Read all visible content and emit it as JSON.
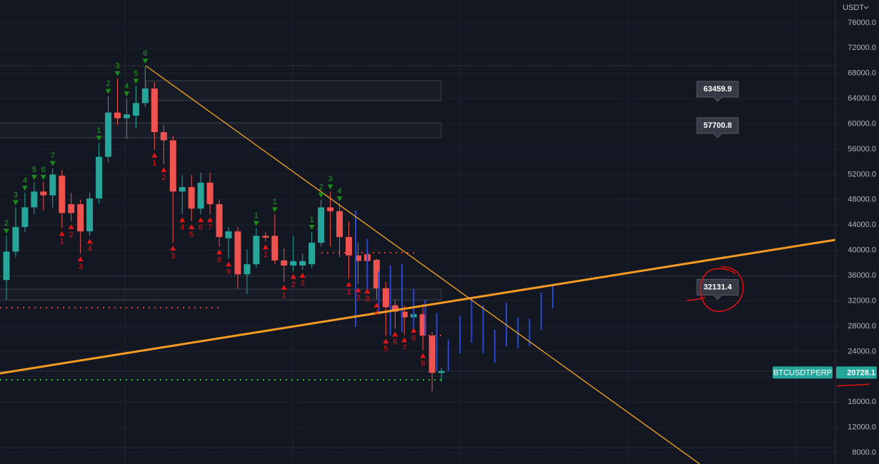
{
  "header": {
    "currency": "USDT"
  },
  "chart_data": {
    "type": "candlestick",
    "ylim": [
      6200,
      79600
    ],
    "yticks": [
      {
        "value": 8000,
        "label": "8000.0"
      },
      {
        "value": 12000,
        "label": "12000.0"
      },
      {
        "value": 16000,
        "label": "16000.0"
      },
      {
        "value": 20000,
        "label": "20000.0"
      },
      {
        "value": 24000,
        "label": "24000.0"
      },
      {
        "value": 28000,
        "label": "28000.0"
      },
      {
        "value": 32000,
        "label": "32000.0"
      },
      {
        "value": 36000,
        "label": "36000.0"
      },
      {
        "value": 40000,
        "label": "40000.0"
      },
      {
        "value": 44000,
        "label": "44000.0"
      },
      {
        "value": 48000,
        "label": "48000.0"
      },
      {
        "value": 52000,
        "label": "52000.0"
      },
      {
        "value": 56000,
        "label": "56000.0"
      },
      {
        "value": 60000,
        "label": "60000.0"
      },
      {
        "value": 64000,
        "label": "64000.0"
      },
      {
        "value": 68000,
        "label": "68000.0"
      },
      {
        "value": 72000,
        "label": "72000.0"
      },
      {
        "value": 76000,
        "label": "76000.0"
      }
    ],
    "grid": true,
    "up_color": "#26a69a",
    "down_color": "#ef5350",
    "open": [
      35300,
      39800,
      43700,
      46800,
      49300,
      48700,
      51800,
      47300,
      47300,
      43000,
      48200,
      54800,
      61800,
      60900,
      61300,
      63300,
      65600,
      58700,
      57400,
      49300,
      50000,
      46600,
      50700,
      47300,
      41900,
      43000,
      36200,
      37800,
      42300,
      42300,
      38400,
      37600,
      37600,
      37800,
      41200,
      46800,
      46200,
      42100,
      39200,
      39400,
      38500,
      34000,
      31300,
      30300,
      29400,
      29900,
      26500,
      20600
    ],
    "high": [
      42300,
      46800,
      49100,
      50800,
      50800,
      53000,
      52700,
      49100,
      48000,
      49100,
      57000,
      64400,
      67200,
      64000,
      66000,
      69200,
      66600,
      59800,
      58100,
      51900,
      51900,
      52300,
      52300,
      48000,
      43700,
      43700,
      40100,
      43500,
      42900,
      45700,
      40300,
      42300,
      39500,
      42900,
      48000,
      49300,
      47400,
      44600,
      41200,
      40600,
      38700,
      35000,
      32200,
      31300,
      33900,
      31500,
      27100,
      21400
    ],
    "low": [
      32200,
      38900,
      42900,
      45700,
      46300,
      46800,
      43500,
      44600,
      39500,
      42300,
      47400,
      53900,
      59800,
      57600,
      59300,
      62700,
      55900,
      53600,
      41200,
      45700,
      44600,
      45700,
      45700,
      40600,
      38700,
      33900,
      33100,
      37200,
      41400,
      37800,
      35000,
      36700,
      36900,
      37200,
      40600,
      40600,
      38900,
      35500,
      34600,
      34400,
      32200,
      26500,
      27600,
      26700,
      28200,
      24200,
      17700,
      19200
    ],
    "close": [
      39800,
      43700,
      46800,
      49300,
      48700,
      52000,
      45900,
      45900,
      43000,
      48200,
      54800,
      61800,
      60900,
      61500,
      63300,
      65600,
      58700,
      57400,
      49300,
      50000,
      46600,
      50700,
      47300,
      42100,
      43000,
      36200,
      37800,
      42300,
      42000,
      38400,
      37600,
      38300,
      38300,
      41200,
      46800,
      46200,
      42100,
      39200,
      38300,
      38300,
      34000,
      31000,
      30300,
      29400,
      29900,
      26500,
      20600,
      20900
    ],
    "setup_up": [
      2,
      3,
      4,
      5,
      6,
      7,
      null,
      null,
      null,
      null,
      1,
      2,
      3,
      4,
      5,
      6,
      null,
      null,
      null,
      null,
      null,
      null,
      null,
      null,
      null,
      null,
      null,
      1,
      null,
      1,
      null,
      null,
      null,
      1,
      2,
      3,
      4,
      null,
      null,
      null,
      null,
      null,
      null,
      null,
      null,
      null,
      null,
      null
    ],
    "setup_down": [
      null,
      null,
      null,
      null,
      null,
      null,
      1,
      2,
      3,
      4,
      null,
      null,
      null,
      null,
      null,
      null,
      1,
      2,
      3,
      4,
      5,
      6,
      7,
      8,
      9,
      null,
      null,
      null,
      1,
      null,
      1,
      2,
      3,
      null,
      null,
      null,
      null,
      1,
      2,
      3,
      4,
      5,
      6,
      7,
      8,
      9,
      null,
      null
    ],
    "projection": {
      "color": "#2846d0",
      "high": [
        46300,
        41800,
        36700,
        37600,
        37800,
        33900,
        32200,
        30100,
        25900,
        29600,
        32200,
        31300,
        27400,
        31700,
        29400,
        29200,
        33300,
        34400
      ],
      "low": [
        27900,
        33900,
        29900,
        26500,
        27100,
        27600,
        26500,
        20900,
        20900,
        23700,
        25400,
        23700,
        22200,
        24800,
        24500,
        24800,
        27400,
        30800
      ]
    },
    "price_labels": [
      63459.9,
      57700.8,
      32131.4
    ],
    "symbol": "BTCUSDTPERP",
    "last_price": 20728.1
  }
}
